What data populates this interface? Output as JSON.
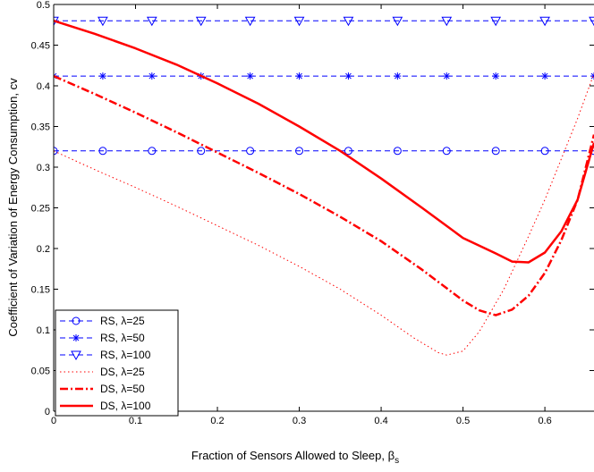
{
  "chart_data": {
    "type": "line",
    "xlabel": "Fraction of Sensors Allowed to Sleep, β",
    "xlabel_subscript": "s",
    "ylabel": "Coefficient of Variation of Energy Consumption, cv",
    "xlim": [
      0,
      0.66
    ],
    "ylim": [
      0,
      0.5
    ],
    "x_ticks": [
      0,
      0.1,
      0.2,
      0.3,
      0.4,
      0.5,
      0.6
    ],
    "x_tick_labels": [
      "0",
      "0.1",
      "0.2",
      "0.3",
      "0.4",
      "0.5",
      "0.6"
    ],
    "y_ticks": [
      0,
      0.05,
      0.1,
      0.15,
      0.2,
      0.25,
      0.3,
      0.35,
      0.4,
      0.45,
      0.5
    ],
    "y_tick_labels": [
      "0",
      "0.05",
      "0.1",
      "0.15",
      "0.2",
      "0.25",
      "0.3",
      "0.35",
      "0.4",
      "0.45",
      "0.5"
    ],
    "grid": false,
    "legend_position": "bottom-left",
    "series": [
      {
        "name": "RS, λ=25",
        "color": "#0000ff",
        "line": "dashed",
        "marker": "circle",
        "x": [
          0,
          0.06,
          0.12,
          0.18,
          0.24,
          0.3,
          0.36,
          0.42,
          0.48,
          0.54,
          0.6,
          0.66
        ],
        "y": [
          0.32,
          0.32,
          0.32,
          0.32,
          0.32,
          0.32,
          0.32,
          0.32,
          0.32,
          0.32,
          0.32,
          0.32
        ]
      },
      {
        "name": "RS, λ=50",
        "color": "#0000ff",
        "line": "dashed",
        "marker": "star",
        "x": [
          0,
          0.06,
          0.12,
          0.18,
          0.24,
          0.3,
          0.36,
          0.42,
          0.48,
          0.54,
          0.6,
          0.66
        ],
        "y": [
          0.412,
          0.412,
          0.412,
          0.412,
          0.412,
          0.412,
          0.412,
          0.412,
          0.412,
          0.412,
          0.412,
          0.412
        ]
      },
      {
        "name": "RS, λ=100",
        "color": "#0000ff",
        "line": "dashed",
        "marker": "triangle-down",
        "x": [
          0,
          0.06,
          0.12,
          0.18,
          0.24,
          0.3,
          0.36,
          0.42,
          0.48,
          0.54,
          0.6,
          0.66
        ],
        "y": [
          0.48,
          0.48,
          0.48,
          0.48,
          0.48,
          0.48,
          0.48,
          0.48,
          0.48,
          0.48,
          0.48,
          0.48
        ]
      },
      {
        "name": "DS, λ=25",
        "color": "#ff0000",
        "line": "dotted",
        "marker": "none",
        "x": [
          0,
          0.05,
          0.1,
          0.15,
          0.2,
          0.25,
          0.3,
          0.35,
          0.4,
          0.44,
          0.47,
          0.48,
          0.5,
          0.52,
          0.55,
          0.58,
          0.6,
          0.62,
          0.64,
          0.66
        ],
        "y": [
          0.32,
          0.297,
          0.275,
          0.252,
          0.228,
          0.204,
          0.178,
          0.15,
          0.118,
          0.09,
          0.072,
          0.069,
          0.074,
          0.098,
          0.15,
          0.215,
          0.26,
          0.31,
          0.36,
          0.415
        ]
      },
      {
        "name": "DS, λ=50",
        "color": "#ff0000",
        "line": "dashdot",
        "marker": "none",
        "x": [
          0,
          0.05,
          0.1,
          0.15,
          0.2,
          0.25,
          0.3,
          0.35,
          0.4,
          0.45,
          0.5,
          0.52,
          0.54,
          0.56,
          0.58,
          0.6,
          0.62,
          0.64,
          0.66
        ],
        "y": [
          0.412,
          0.39,
          0.367,
          0.343,
          0.318,
          0.293,
          0.267,
          0.239,
          0.209,
          0.174,
          0.136,
          0.124,
          0.118,
          0.125,
          0.142,
          0.17,
          0.21,
          0.26,
          0.34
        ]
      },
      {
        "name": "DS, λ=100",
        "color": "#ff0000",
        "line": "solid",
        "marker": "none",
        "x": [
          0,
          0.05,
          0.1,
          0.15,
          0.2,
          0.25,
          0.3,
          0.35,
          0.4,
          0.45,
          0.5,
          0.54,
          0.56,
          0.58,
          0.6,
          0.62,
          0.64,
          0.66
        ],
        "y": [
          0.48,
          0.464,
          0.446,
          0.426,
          0.403,
          0.378,
          0.35,
          0.32,
          0.286,
          0.25,
          0.213,
          0.194,
          0.184,
          0.183,
          0.195,
          0.221,
          0.26,
          0.33
        ]
      }
    ]
  }
}
